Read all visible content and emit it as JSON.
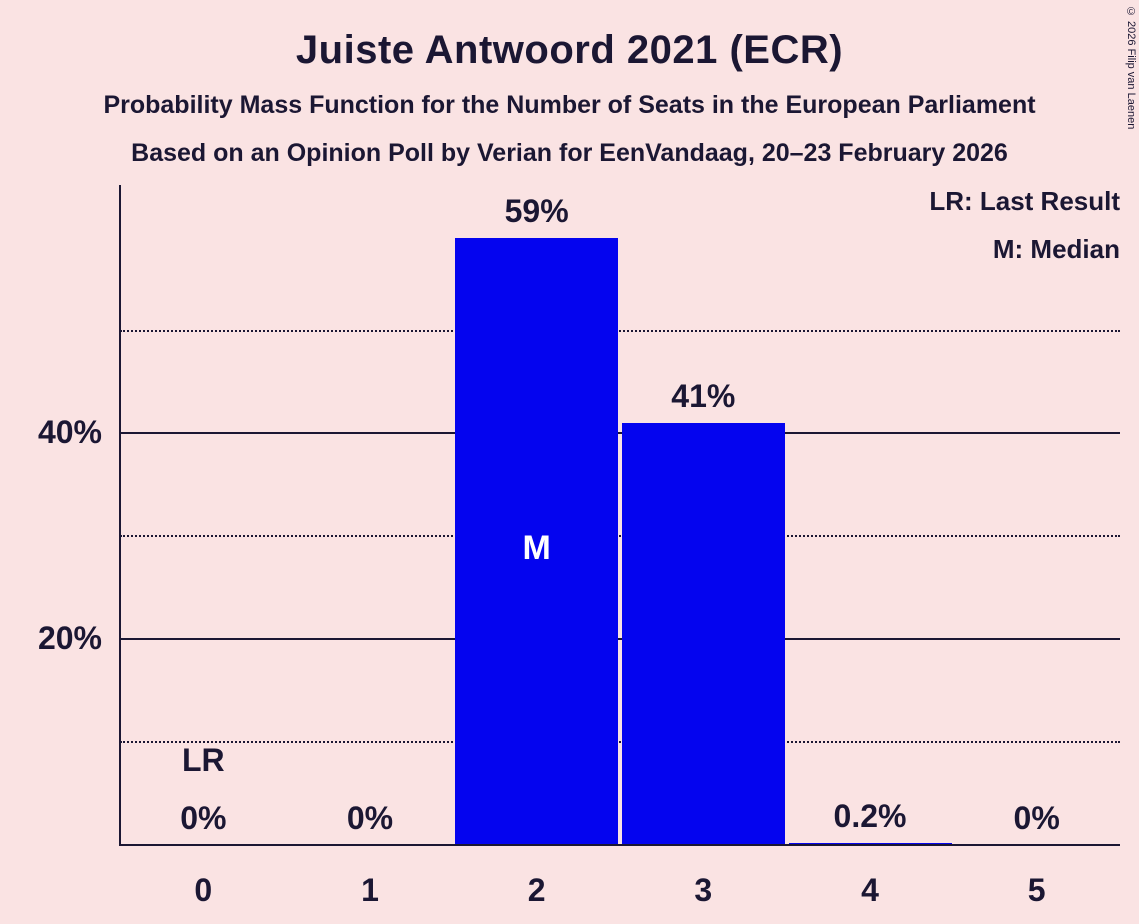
{
  "page": {
    "title": "Juiste Antwoord 2021 (ECR)",
    "subtitle1": "Probability Mass Function for the Number of Seats in the European Parliament",
    "subtitle2": "Based on an Opinion Poll by Verian for EenVandaag, 20–23 February 2026",
    "copyright": "© 2026 Filip van Laenen"
  },
  "legend": {
    "lr": "LR: Last Result",
    "m": "M: Median"
  },
  "colors": {
    "background": "#fae3e3",
    "bar": "#0404ef",
    "text": "#1b1733",
    "bar_label_inside": "#ffffff"
  },
  "chart_data": {
    "type": "bar",
    "title": "Juiste Antwoord 2021 (ECR)",
    "categories": [
      "0",
      "1",
      "2",
      "3",
      "4",
      "5"
    ],
    "values": [
      0,
      0,
      59,
      41,
      0.2,
      0
    ],
    "value_labels": [
      "0%",
      "0%",
      "59%",
      "41%",
      "0.2%",
      "0%"
    ],
    "xlabel": "",
    "ylabel": "",
    "ylim": [
      0,
      64
    ],
    "grid": true,
    "legend_position": "top-right",
    "ytick_labels": [
      {
        "percent": 20,
        "label": "20%"
      },
      {
        "percent": 40,
        "label": "40%"
      }
    ],
    "gridlines": [
      {
        "percent": 10,
        "style": "dotted"
      },
      {
        "percent": 20,
        "style": "solid"
      },
      {
        "percent": 30,
        "style": "dotted"
      },
      {
        "percent": 40,
        "style": "solid"
      },
      {
        "percent": 50,
        "style": "dotted"
      }
    ],
    "annotations": {
      "last_result_category_index": 0,
      "last_result_label": "LR",
      "median_category_index": 2,
      "median_label": "M"
    }
  }
}
